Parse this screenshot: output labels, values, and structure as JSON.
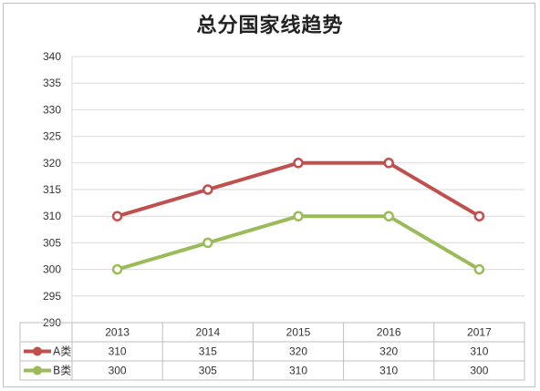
{
  "chart_data": {
    "type": "line",
    "title": "总分国家线趋势",
    "categories": [
      "2013",
      "2014",
      "2015",
      "2016",
      "2017"
    ],
    "series": [
      {
        "name": "A类",
        "values": [
          310,
          315,
          320,
          320,
          310
        ],
        "color": "#c0504d"
      },
      {
        "name": "B类",
        "values": [
          300,
          305,
          310,
          310,
          300
        ],
        "color": "#9bbb59"
      }
    ],
    "ylim": [
      290,
      340
    ],
    "ytick_step": 5,
    "yticks": [
      "290",
      "295",
      "300",
      "305",
      "310",
      "315",
      "320",
      "325",
      "330",
      "335",
      "340"
    ],
    "grid": true,
    "legend": "data-table-left",
    "data_table": true
  }
}
